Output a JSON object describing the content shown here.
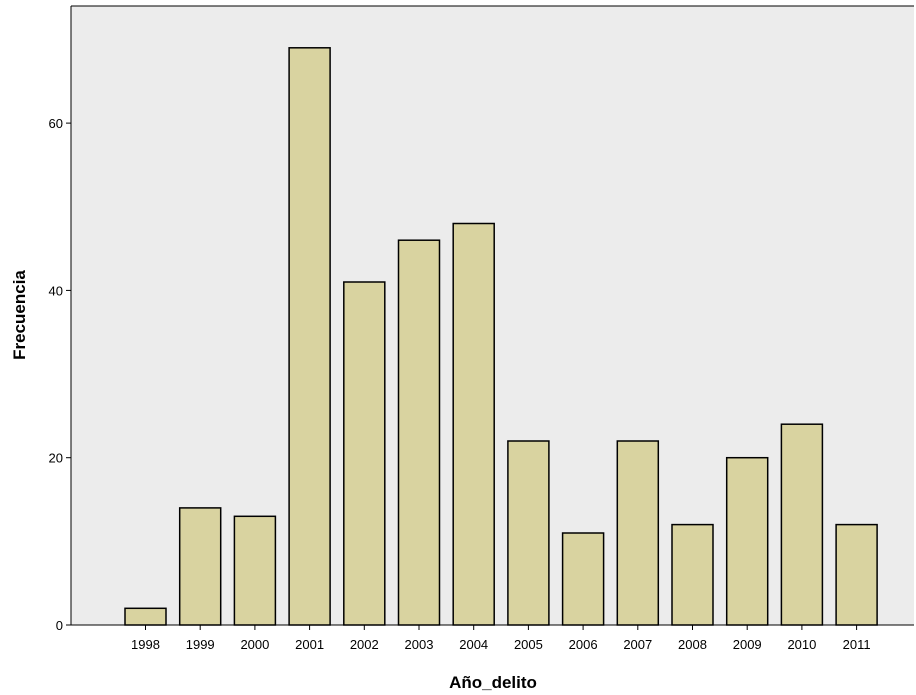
{
  "chart_data": {
    "type": "bar",
    "title": "",
    "xlabel": "Año_delito",
    "ylabel": "Frecuencia",
    "categories": [
      "1998",
      "1999",
      "2000",
      "2001",
      "2002",
      "2003",
      "2004",
      "2005",
      "2006",
      "2007",
      "2008",
      "2009",
      "2010",
      "2011"
    ],
    "values": [
      2,
      14,
      13,
      69,
      41,
      46,
      48,
      22,
      11,
      22,
      12,
      20,
      24,
      12
    ],
    "ylim": [
      0,
      74
    ],
    "yticks": [
      "0",
      "20",
      "40",
      "60"
    ],
    "grid": false,
    "legend": "none",
    "colors": {
      "plot_background": "#ececec",
      "bar_fill": "#d9d3a0",
      "bar_stroke": "#000000",
      "frame": "#000000"
    }
  }
}
